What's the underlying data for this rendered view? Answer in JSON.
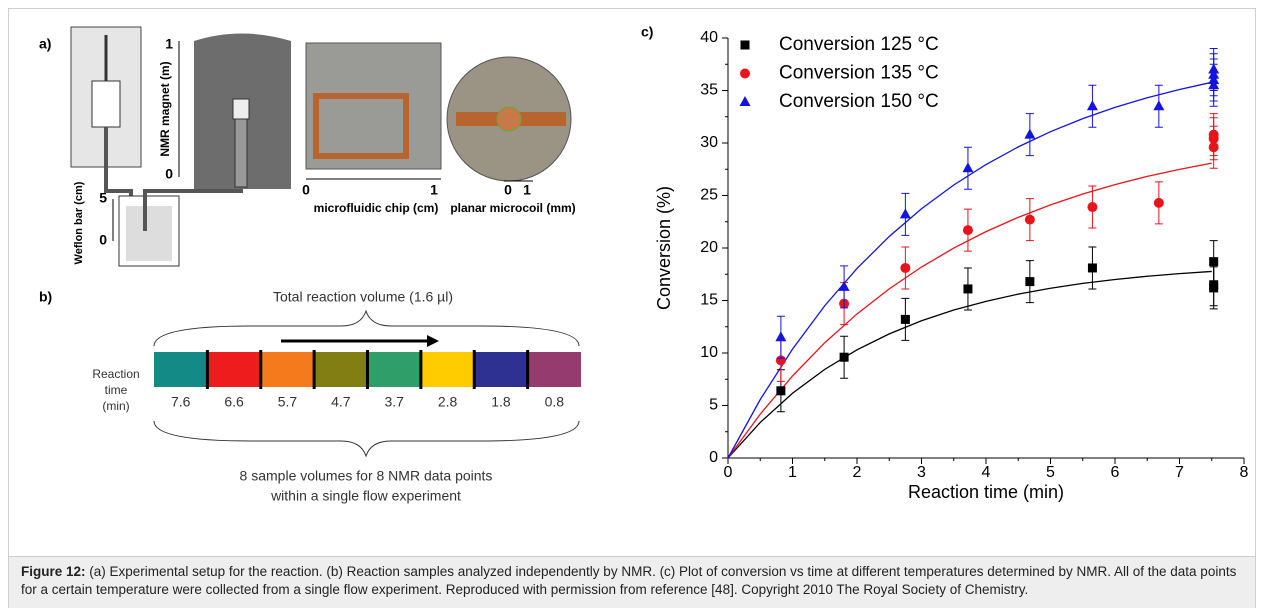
{
  "panel_a": {
    "label": "a)",
    "magnet_axis": {
      "title": "NMR magnet (m)",
      "top": "1",
      "bottom": "0"
    },
    "bar_axis": {
      "title": "Weflon bar (cm)",
      "top": "5",
      "bottom": "0"
    },
    "chip_axis": {
      "title": "microfluidic chip (cm)",
      "left": "0",
      "right": "1"
    },
    "coil_axis": {
      "title": "planar microcoil (mm)",
      "left": "0",
      "right": "1"
    }
  },
  "panel_b": {
    "label": "b)",
    "top_text": "Total reaction volume (1.6 µl)",
    "row_title": "Reaction time (min)",
    "segments": [
      {
        "time": "7.6",
        "color": "#138a86"
      },
      {
        "time": "6.6",
        "color": "#ee1c1c"
      },
      {
        "time": "5.7",
        "color": "#f47a1c"
      },
      {
        "time": "4.7",
        "color": "#817f14"
      },
      {
        "time": "3.7",
        "color": "#2f9e68"
      },
      {
        "time": "2.8",
        "color": "#ffcc00"
      },
      {
        "time": "1.8",
        "color": "#2e3192"
      },
      {
        "time": "0.8",
        "color": "#963b6e"
      }
    ],
    "bottom_text": [
      "8 sample volumes for 8 NMR data points",
      "within a single flow experiment"
    ]
  },
  "chart_data": {
    "type": "scatter",
    "panel_label": "c)",
    "x_label": "Reaction time (min)",
    "y_label": "Conversion (%)",
    "xlim": [
      0,
      8
    ],
    "ylim": [
      0,
      40
    ],
    "xticks": [
      0,
      1,
      2,
      3,
      4,
      5,
      6,
      7,
      8
    ],
    "yticks": [
      0,
      5,
      10,
      15,
      20,
      25,
      30,
      35,
      40
    ],
    "legend": "upper left",
    "series": [
      {
        "name": "Conversion 125 °C",
        "color": "#000000",
        "marker": "square",
        "x": [
          0.82,
          1.8,
          2.75,
          3.72,
          4.68,
          5.65,
          7.53,
          7.53,
          7.53
        ],
        "values": [
          6.4,
          9.6,
          13.2,
          16.1,
          16.8,
          18.1,
          18.7,
          16.5,
          16.2
        ],
        "errors": [
          2,
          2,
          2,
          2,
          2,
          2,
          2,
          2,
          2
        ]
      },
      {
        "name": "Conversion 135 °C",
        "color": "#e8141a",
        "marker": "circle",
        "x": [
          0.82,
          1.8,
          2.75,
          3.72,
          4.68,
          5.65,
          6.68,
          7.53,
          7.53,
          7.53
        ],
        "values": [
          9.3,
          14.7,
          18.1,
          21.7,
          22.7,
          23.9,
          24.3,
          30.8,
          30.4,
          29.6
        ],
        "errors": [
          2,
          2,
          2,
          2,
          2,
          2,
          2,
          2,
          2,
          2
        ]
      },
      {
        "name": "Conversion 150 °C",
        "color": "#1414e0",
        "marker": "triangle",
        "x": [
          0.82,
          1.8,
          2.75,
          3.72,
          4.68,
          5.65,
          6.68,
          7.53,
          7.53,
          7.53,
          7.53
        ],
        "values": [
          11.5,
          16.3,
          23.2,
          27.6,
          30.8,
          33.5,
          33.5,
          37,
          36.5,
          36,
          35.5
        ],
        "errors": [
          2,
          2,
          2,
          2,
          2,
          2,
          2,
          2,
          2,
          2,
          2
        ]
      }
    ],
    "fits": [
      {
        "color": "#000000",
        "x": [
          0,
          0.5,
          1,
          1.5,
          2,
          2.5,
          3,
          3.5,
          4,
          4.5,
          5,
          5.5,
          6,
          6.5,
          7,
          7.5
        ],
        "values": [
          0,
          3.39,
          6.17,
          8.44,
          10.3,
          11.82,
          13.07,
          14.09,
          14.92,
          15.61,
          16.17,
          16.63,
          17.0,
          17.31,
          17.56,
          17.77
        ]
      },
      {
        "color": "#e8141a",
        "x": [
          0,
          0.5,
          1,
          1.5,
          2,
          2.5,
          3,
          3.5,
          4,
          4.5,
          5,
          5.5,
          6,
          6.5,
          7,
          7.5
        ],
        "values": [
          0,
          4.18,
          7.81,
          10.98,
          13.72,
          16.11,
          18.19,
          19.99,
          21.56,
          22.92,
          24.11,
          25.14,
          26.04,
          26.82,
          27.49,
          28.08
        ]
      },
      {
        "color": "#1414e0",
        "x": [
          0,
          0.5,
          1,
          1.5,
          2,
          2.5,
          3,
          3.5,
          4,
          4.5,
          5,
          5.5,
          6,
          6.5,
          7,
          7.5
        ],
        "values": [
          0,
          5.57,
          10.37,
          14.5,
          18.05,
          21.1,
          23.74,
          26.0,
          27.95,
          29.63,
          31.08,
          32.32,
          33.39,
          34.31,
          35.1,
          35.78
        ]
      }
    ]
  },
  "caption": {
    "label": "Figure 12:",
    "text": "(a) Experimental setup for the reaction. (b) Reaction samples analyzed independently by NMR. (c) Plot of conversion vs time at different temperatures determined by NMR. All of the data points for a certain temperature were collected from a single flow experiment. Reproduced with permission from reference [48]. Copyright 2010 The Royal Society of Chemistry."
  }
}
